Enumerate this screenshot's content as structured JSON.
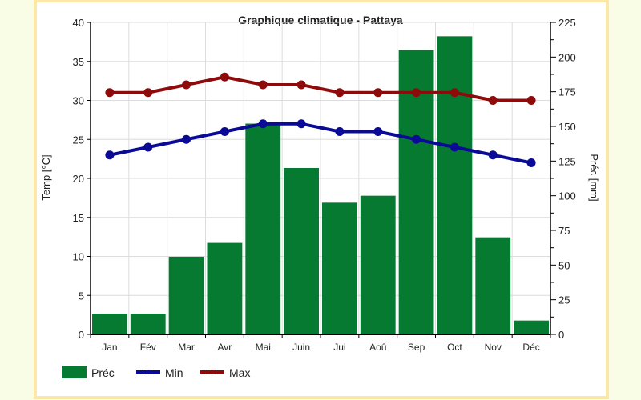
{
  "chart_data": {
    "type": "bar+line",
    "title": "Graphique climatique - Pattaya",
    "categories": [
      "Jan",
      "Fév",
      "Mar",
      "Avr",
      "Mai",
      "Juin",
      "Jui",
      "Aoû",
      "Sep",
      "Oct",
      "Nov",
      "Déc"
    ],
    "y_left": {
      "label": "Temp [°C]",
      "range": [
        0,
        40
      ],
      "ticks": [
        0,
        5,
        10,
        15,
        20,
        25,
        30,
        35,
        40
      ]
    },
    "y_right": {
      "label": "Préc [mm]",
      "range": [
        0,
        225
      ],
      "ticks": [
        0,
        25,
        50,
        75,
        100,
        125,
        150,
        175,
        200,
        225
      ]
    },
    "grid": true,
    "legend_placement": "bottom-left",
    "series": [
      {
        "name": "Préc",
        "type": "bar",
        "axis": "right",
        "color": "#077a32",
        "values": [
          15,
          15,
          56,
          66,
          152,
          120,
          95,
          100,
          205,
          215,
          70,
          10
        ]
      },
      {
        "name": "Min",
        "type": "line",
        "axis": "left",
        "color": "#0a0a96",
        "values": [
          23,
          24,
          25,
          26,
          27,
          27,
          26,
          26,
          25,
          24,
          23,
          22
        ]
      },
      {
        "name": "Max",
        "type": "line",
        "axis": "left",
        "color": "#8e0b0b",
        "values": [
          31,
          31,
          32,
          33,
          32,
          32,
          31,
          31,
          31,
          31,
          30,
          30
        ]
      }
    ]
  }
}
